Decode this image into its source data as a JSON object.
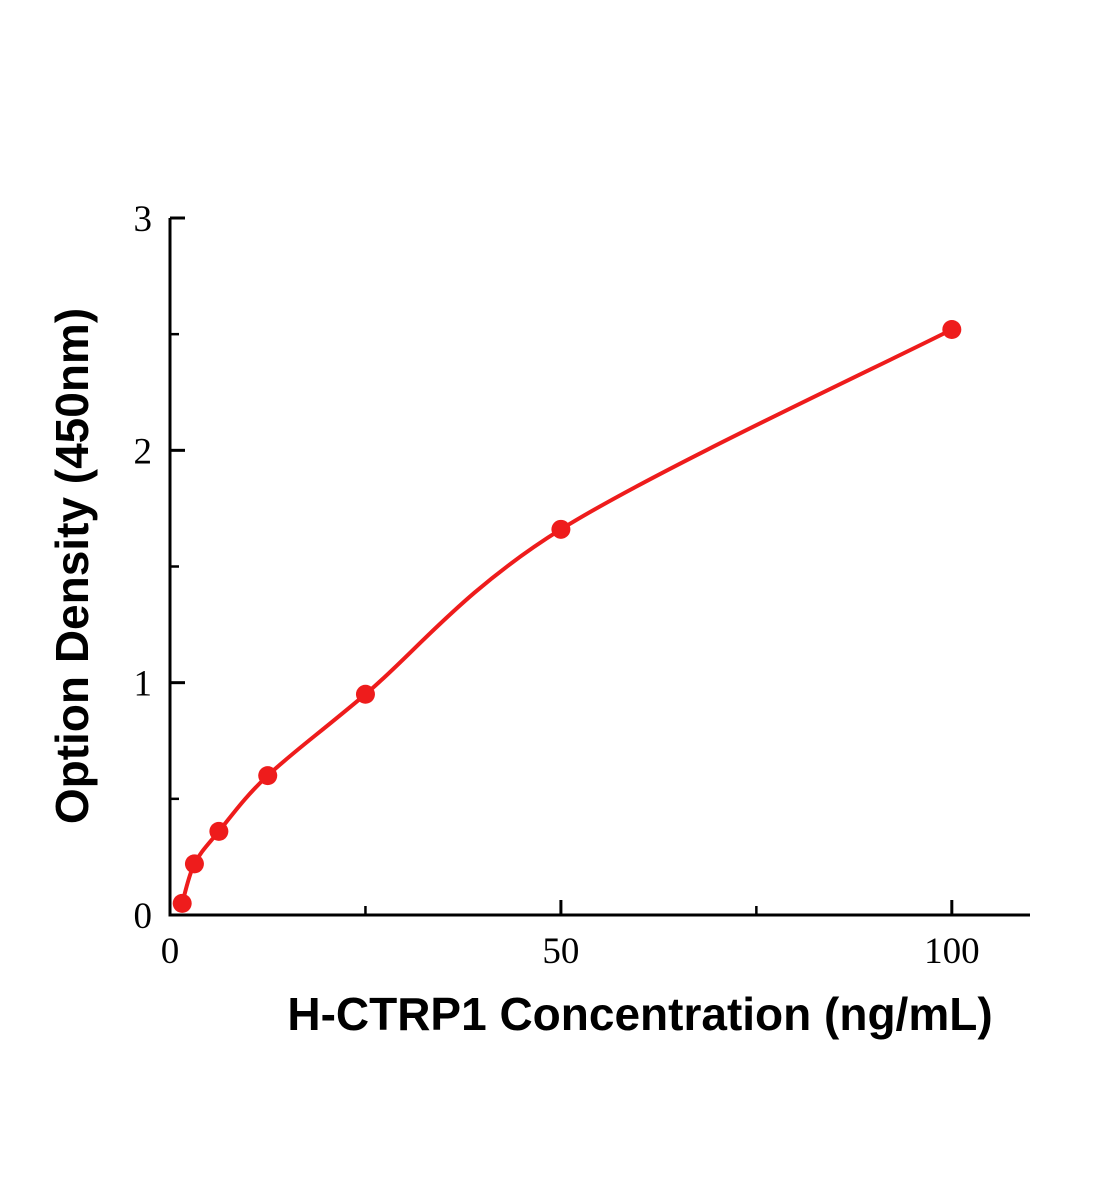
{
  "chart_data": {
    "type": "scatter",
    "title": "",
    "xlabel": "H-CTRP1 Concentration (ng/mL)",
    "ylabel": "Option Density (450nm)",
    "x": [
      1.56,
      3.125,
      6.25,
      12.5,
      25,
      50,
      100
    ],
    "y": [
      0.05,
      0.22,
      0.36,
      0.6,
      0.95,
      1.66,
      2.52
    ],
    "xlim": [
      0,
      110
    ],
    "ylim": [
      0,
      3
    ],
    "x_major_ticks": [
      0,
      50,
      100
    ],
    "x_minor_ticks": [
      25,
      75
    ],
    "y_major_ticks": [
      0,
      1,
      2,
      3
    ],
    "y_minor_ticks": [
      0.5,
      1.5,
      2.5
    ],
    "legend": [],
    "grid": false,
    "fit_curve": true,
    "point_color": "#ee1c1c",
    "line_color": "#ee1c1c",
    "axis_color": "#000000",
    "background": "#ffffff"
  }
}
